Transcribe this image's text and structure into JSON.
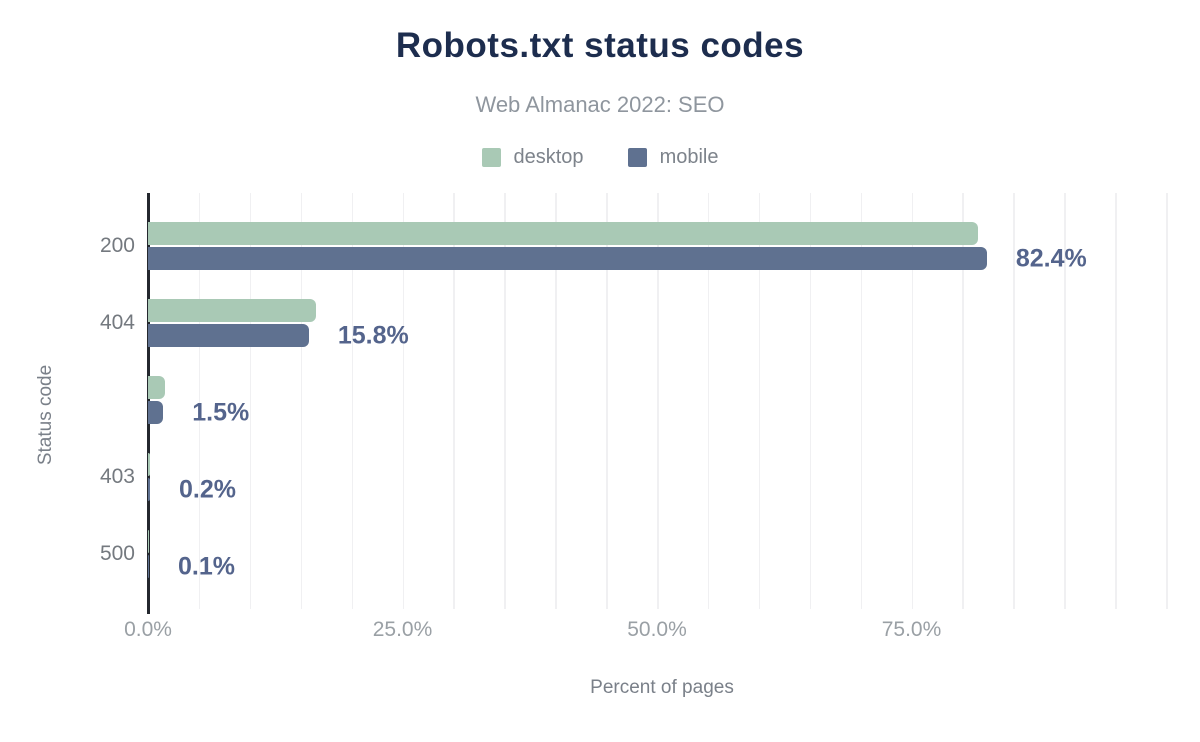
{
  "header": {
    "title": "Robots.txt status codes",
    "subtitle": "Web Almanac 2022: SEO"
  },
  "legend": {
    "items": [
      {
        "label": "desktop",
        "color": "#a9c9b5"
      },
      {
        "label": "mobile",
        "color": "#5f7190"
      }
    ]
  },
  "chart_data": {
    "type": "bar",
    "orientation": "horizontal",
    "title": "Robots.txt status codes",
    "subtitle": "Web Almanac 2022: SEO",
    "categories": [
      "200",
      "404",
      "",
      "403",
      "500"
    ],
    "series": [
      {
        "name": "desktop",
        "color": "#a9c9b5",
        "values": [
          81.5,
          16.5,
          1.7,
          0.2,
          0.1
        ]
      },
      {
        "name": "mobile",
        "color": "#5f7190",
        "values": [
          82.4,
          15.8,
          1.5,
          0.2,
          0.1
        ]
      }
    ],
    "value_labels": [
      "82.4%",
      "15.8%",
      "1.5%",
      "0.2%",
      "0.1%"
    ],
    "value_labels_series": "mobile",
    "xlabel": "Percent of pages",
    "ylabel": "Status code",
    "x_ticks": [
      "0.0%",
      "25.0%",
      "50.0%",
      "75.0%"
    ],
    "x_tick_values": [
      0,
      25,
      50,
      75
    ],
    "xlim": [
      0,
      101
    ],
    "grid": {
      "vertical": true,
      "step_percent": 5
    },
    "legend_position": "top"
  },
  "colors": {
    "background": "#ffffff",
    "title": "#1d2d4e",
    "subtitle": "#8f969e",
    "value_label": "#54648c",
    "axis_line": "#24282e",
    "gridline": "#f0f0f2",
    "category_label": "#74797f",
    "tick_label": "#9aa0a5",
    "axis_title": "#7a8089",
    "legend_label": "#7d838b"
  }
}
